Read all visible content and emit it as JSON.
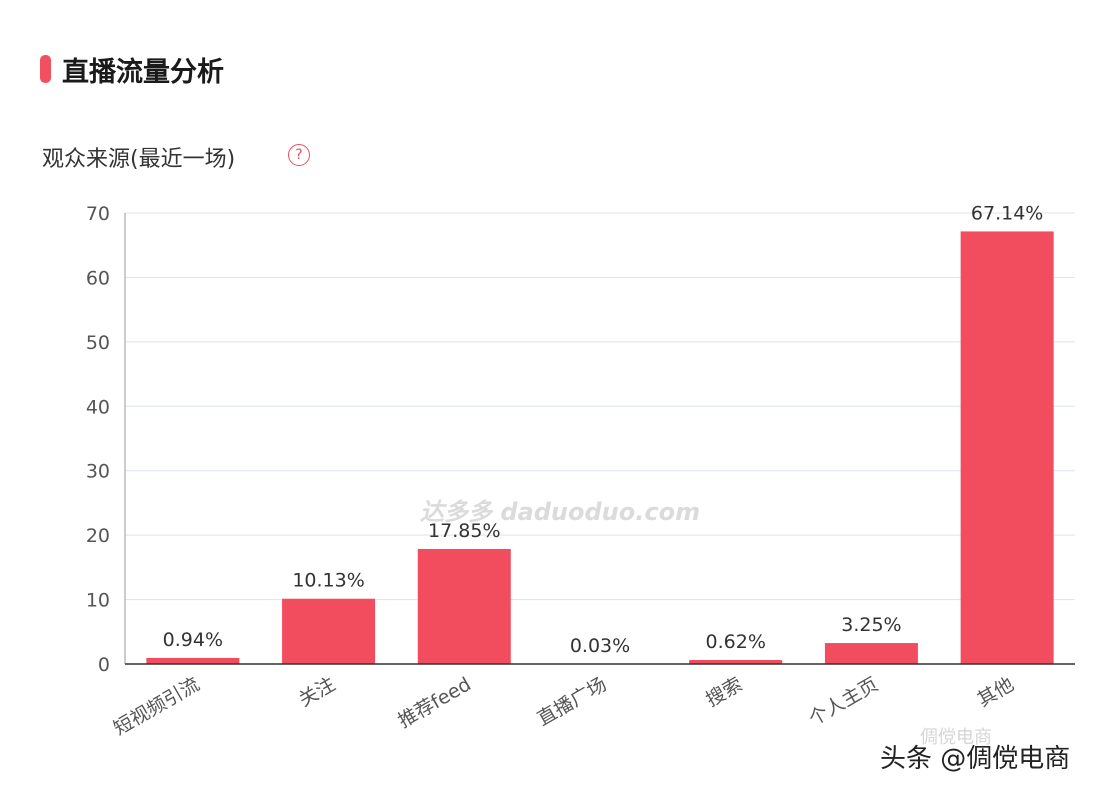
{
  "header": {
    "title": "直播流量分析",
    "accent": "#f0505f"
  },
  "subtitle": "观众来源(最近一场)",
  "help_icon": "question-circle-icon",
  "watermark": "达多多 daduoduo.com",
  "credit": "头条 @倜傥电商",
  "credit_faint": "倜傥电商",
  "chart_data": {
    "type": "bar",
    "categories": [
      "短视频引流",
      "关注",
      "推荐feed",
      "直播广场",
      "搜索",
      "个人主页",
      "其他"
    ],
    "values": [
      0.94,
      10.13,
      17.85,
      0.03,
      0.62,
      3.25,
      67.14
    ],
    "data_labels": [
      "0.94%",
      "10.13%",
      "17.85%",
      "0.03%",
      "0.62%",
      "3.25%",
      "67.14%"
    ],
    "yticks": [
      0,
      10,
      20,
      30,
      40,
      50,
      60,
      70
    ],
    "ylim": [
      0,
      70
    ],
    "grid": true,
    "bar_color": "#f24d5e"
  }
}
